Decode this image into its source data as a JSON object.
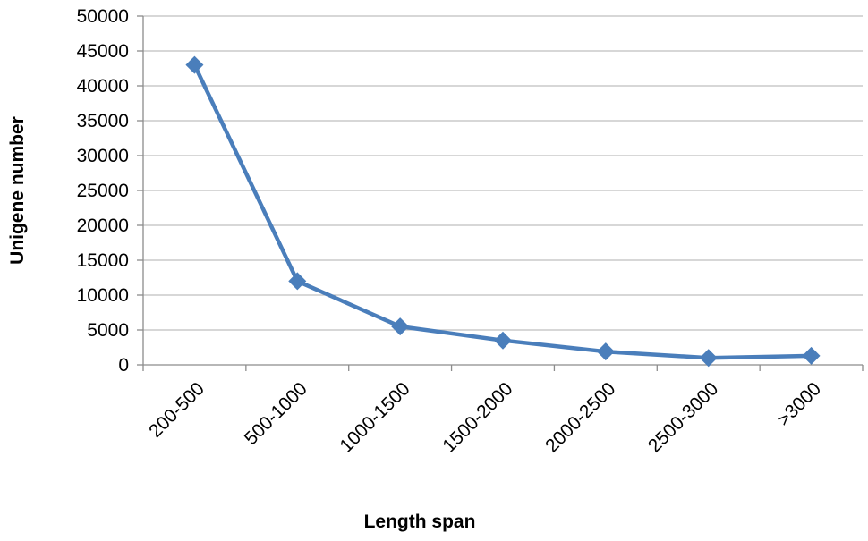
{
  "chart_data": {
    "type": "line",
    "title": "",
    "xlabel": "Length span",
    "ylabel": "Unigene number",
    "categories": [
      "200-500",
      "500-1000",
      "1000-1500",
      "1500-2000",
      "2000-2500",
      "2500-3000",
      ">3000"
    ],
    "series": [
      {
        "values": [
          43000,
          12000,
          5500,
          3500,
          1900,
          1000,
          1300
        ]
      }
    ],
    "ylim": [
      0,
      50000
    ],
    "y_ticks": [
      0,
      5000,
      10000,
      15000,
      20000,
      25000,
      30000,
      35000,
      40000,
      45000,
      50000
    ],
    "grid": true,
    "legend": "none",
    "colors": {
      "series": "#4a7ebb",
      "grid": "#bfbfbf",
      "axis": "#8c8c8c"
    }
  }
}
